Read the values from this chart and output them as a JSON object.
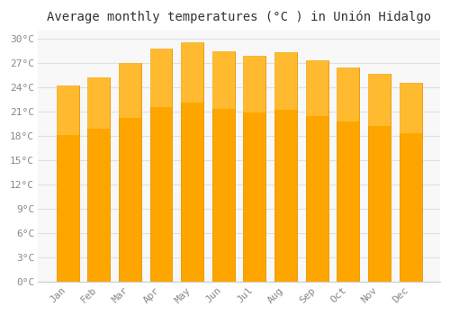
{
  "months": [
    "Jan",
    "Feb",
    "Mar",
    "Apr",
    "May",
    "Jun",
    "Jul",
    "Aug",
    "Sep",
    "Oct",
    "Nov",
    "Dec"
  ],
  "values": [
    24.2,
    25.2,
    27.0,
    28.7,
    29.5,
    28.4,
    27.9,
    28.3,
    27.3,
    26.4,
    25.6,
    24.5
  ],
  "bar_color_face": "#FFA500",
  "bar_color_edge": "#E69500",
  "title": "Average monthly temperatures (°C ) in Unión Hidalgo",
  "ylim": [
    0,
    31
  ],
  "yticks": [
    0,
    3,
    6,
    9,
    12,
    15,
    18,
    21,
    24,
    27,
    30
  ],
  "ytick_labels": [
    "0°C",
    "3°C",
    "6°C",
    "9°C",
    "12°C",
    "15°C",
    "18°C",
    "21°C",
    "24°C",
    "27°C",
    "30°C"
  ],
  "background_color": "#ffffff",
  "plot_bg_color": "#f8f8f8",
  "grid_color": "#e0e0e0",
  "title_fontsize": 10,
  "tick_fontsize": 8,
  "title_color": "#333333",
  "tick_color": "#888888"
}
